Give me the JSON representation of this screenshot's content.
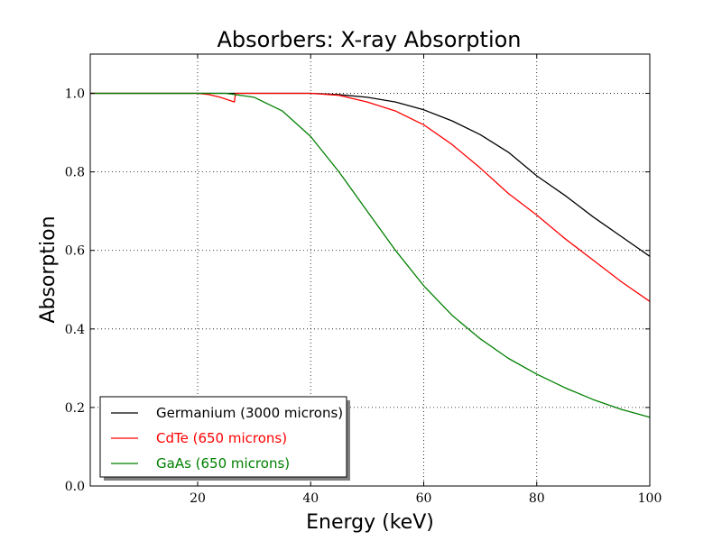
{
  "chart_data": {
    "type": "line",
    "title": "Absorbers: X-ray Absorption",
    "xlabel": "Energy (keV)",
    "ylabel": "Absorption",
    "xlim": [
      1,
      100
    ],
    "ylim": [
      0.0,
      1.1
    ],
    "xticks": [
      20,
      40,
      60,
      80,
      100
    ],
    "xtick_labels": [
      "20",
      "40",
      "60",
      "80",
      "100"
    ],
    "yticks": [
      0.0,
      0.2,
      0.4,
      0.6,
      0.8,
      1.0
    ],
    "ytick_labels": [
      "0.0",
      "0.2",
      "0.4",
      "0.6",
      "0.8",
      "1.0"
    ],
    "grid": true,
    "legend_position": "lower-left",
    "series": [
      {
        "name": "Germanium (3000 microns)",
        "color": "#000000",
        "x": [
          1,
          10,
          20,
          30,
          35,
          40,
          45,
          50,
          55,
          60,
          65,
          70,
          75,
          80,
          85,
          90,
          95,
          100
        ],
        "y": [
          1.0,
          1.0,
          1.0,
          1.0,
          1.0,
          1.0,
          0.997,
          0.99,
          0.978,
          0.958,
          0.93,
          0.895,
          0.85,
          0.79,
          0.74,
          0.685,
          0.635,
          0.585
        ]
      },
      {
        "name": "CdTe (650 microns)",
        "color": "#ff0000",
        "x": [
          1,
          10,
          20,
          22,
          24,
          26.5,
          26.71,
          28,
          30,
          35,
          40,
          45,
          50,
          55,
          60,
          65,
          70,
          75,
          80,
          85,
          90,
          95,
          100
        ],
        "y": [
          1.0,
          1.0,
          1.0,
          0.997,
          0.99,
          0.978,
          1.0,
          1.0,
          1.0,
          1.0,
          1.0,
          0.995,
          0.978,
          0.955,
          0.92,
          0.87,
          0.81,
          0.745,
          0.69,
          0.63,
          0.575,
          0.52,
          0.47
        ]
      },
      {
        "name": "GaAs (650 microns)",
        "color": "#008000",
        "x": [
          1,
          10,
          20,
          25,
          30,
          35,
          40,
          45,
          50,
          55,
          60,
          65,
          70,
          75,
          80,
          85,
          90,
          95,
          100
        ],
        "y": [
          1.0,
          1.0,
          1.0,
          1.0,
          0.99,
          0.955,
          0.89,
          0.8,
          0.7,
          0.6,
          0.51,
          0.435,
          0.375,
          0.325,
          0.285,
          0.25,
          0.22,
          0.195,
          0.175
        ]
      }
    ]
  }
}
